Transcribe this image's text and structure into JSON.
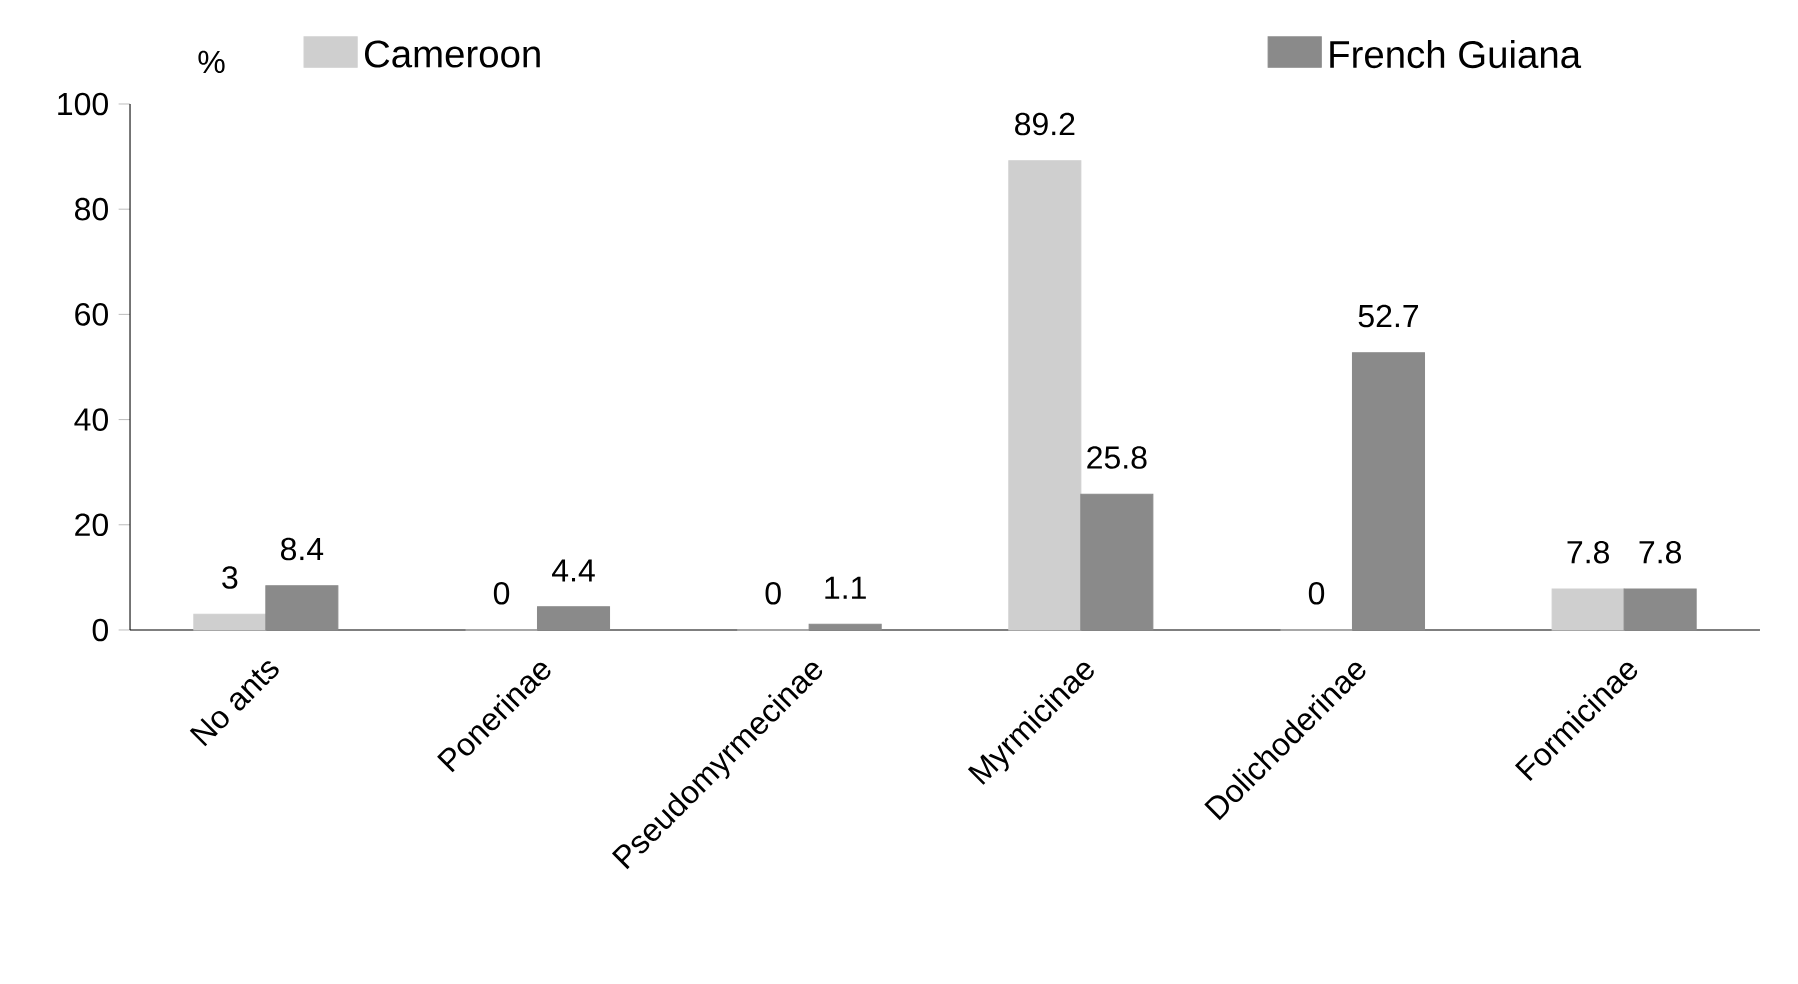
{
  "chart_data": {
    "type": "bar",
    "ylabel": "%",
    "categories": [
      "No ants",
      "Ponerinae",
      "Pseudomyrmecinae",
      "Myrmicinae",
      "Dolichoderinae",
      "Formicinae"
    ],
    "series": [
      {
        "name": "Cameroon",
        "color": "#cfcfcf",
        "values": [
          3,
          0,
          0,
          89.2,
          0,
          7.8
        ]
      },
      {
        "name": "French Guiana",
        "color": "#8a8a8a",
        "values": [
          8.4,
          4.4,
          1.1,
          25.8,
          52.7,
          7.8
        ]
      }
    ],
    "ylim": [
      0,
      100
    ],
    "yticks": [
      0,
      20,
      40,
      60,
      80,
      100
    ],
    "data_labels": true,
    "legend": "top",
    "grid": false
  }
}
